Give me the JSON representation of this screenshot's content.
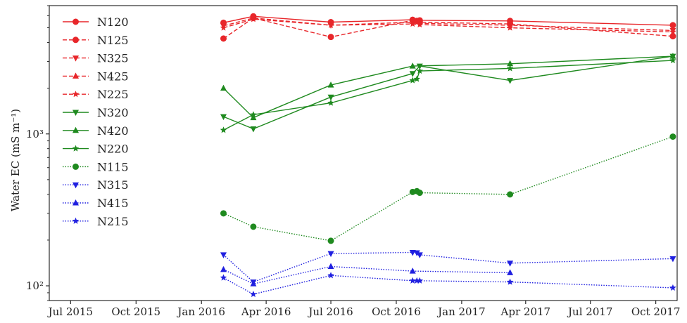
{
  "chart_data": {
    "type": "line",
    "title": "",
    "xlabel": "",
    "ylabel": "Water EC (mS m⁻¹)",
    "yscale": "log",
    "xlim": [
      "2015-06-01",
      "2017-10-31"
    ],
    "ylim": [
      80,
      7000
    ],
    "x_ticks": [
      "2015-07-01",
      "2015-10-01",
      "2016-01-01",
      "2016-04-01",
      "2016-07-01",
      "2016-10-01",
      "2017-01-01",
      "2017-04-01",
      "2017-07-01",
      "2017-10-01"
    ],
    "x_tick_labels": [
      "Jul 2015",
      "Oct 2015",
      "Jan 2016",
      "Apr 2016",
      "Jul 2016",
      "Oct 2016",
      "Jan 2017",
      "Apr 2017",
      "Jul 2017",
      "Oct 2017"
    ],
    "y_ticks": [
      100,
      1000
    ],
    "y_tick_labels": [
      "10²",
      "10³"
    ],
    "grid": false,
    "legend_position": "upper-left",
    "series": [
      {
        "name": "N120",
        "color": "#e8262a",
        "dash": "solid",
        "marker": "circle",
        "x": [
          "2016-02-01",
          "2016-03-14",
          "2016-07-01",
          "2016-10-24",
          "2016-11-03",
          "2017-03-10",
          "2017-10-25"
        ],
        "y": [
          5400,
          5950,
          5450,
          5650,
          5600,
          5550,
          5200
        ]
      },
      {
        "name": "N125",
        "color": "#e8262a",
        "dash": "dashed",
        "marker": "circle",
        "x": [
          "2016-02-01",
          "2016-03-14",
          "2016-07-01",
          "2016-10-24",
          "2016-10-30",
          "2016-11-03",
          "2017-03-10",
          "2017-10-25"
        ],
        "y": [
          4250,
          5800,
          4350,
          5600,
          5550,
          5450,
          5300,
          4400
        ]
      },
      {
        "name": "N325",
        "color": "#e8262a",
        "dash": "dashed",
        "marker": "tri-down",
        "x": [
          "2016-02-01",
          "2016-03-14",
          "2016-07-01",
          "2016-10-24",
          "2016-11-03",
          "2017-03-10",
          "2017-10-25"
        ],
        "y": [
          5150,
          5800,
          5200,
          5450,
          5350,
          5200,
          4800
        ]
      },
      {
        "name": "N425",
        "color": "#e8262a",
        "dash": "dashed",
        "marker": "tri-up",
        "x": [],
        "y": []
      },
      {
        "name": "N225",
        "color": "#e8262a",
        "dash": "dashed",
        "marker": "star",
        "x": [
          "2016-02-01",
          "2016-03-14",
          "2016-07-01",
          "2016-10-24",
          "2016-11-03",
          "2017-03-10",
          "2017-10-25"
        ],
        "y": [
          5000,
          5700,
          5200,
          5300,
          5250,
          5000,
          4700
        ]
      },
      {
        "name": "N320",
        "color": "#1f8a1f",
        "dash": "solid",
        "marker": "tri-down",
        "x": [
          "2016-02-01",
          "2016-03-14",
          "2016-07-01",
          "2016-10-24",
          "2016-11-03",
          "2017-03-10",
          "2017-10-25"
        ],
        "y": [
          1300,
          1080,
          1750,
          2500,
          2800,
          2250,
          3250
        ]
      },
      {
        "name": "N420",
        "color": "#1f8a1f",
        "dash": "solid",
        "marker": "tri-up",
        "x": [
          "2016-02-01",
          "2016-03-14",
          "2016-07-01",
          "2016-10-24",
          "2017-03-10",
          "2017-10-25"
        ],
        "y": [
          2000,
          1280,
          2100,
          2800,
          2900,
          3250
        ]
      },
      {
        "name": "N220",
        "color": "#1f8a1f",
        "dash": "solid",
        "marker": "star",
        "x": [
          "2016-02-01",
          "2016-03-14",
          "2016-07-01",
          "2016-10-24",
          "2016-10-30",
          "2016-11-03",
          "2017-03-10",
          "2017-10-25"
        ],
        "y": [
          1060,
          1340,
          1600,
          2250,
          2300,
          2600,
          2700,
          3050
        ]
      },
      {
        "name": "N115",
        "color": "#1f8a1f",
        "dash": "dotted",
        "marker": "circle",
        "x": [
          "2016-02-01",
          "2016-03-14",
          "2016-07-01",
          "2016-10-24",
          "2016-10-30",
          "2016-11-03",
          "2017-03-10",
          "2017-10-25"
        ],
        "y": [
          300,
          245,
          198,
          415,
          420,
          410,
          400,
          960
        ]
      },
      {
        "name": "N315",
        "color": "#2020e0",
        "dash": "dotted",
        "marker": "tri-down",
        "x": [
          "2016-02-01",
          "2016-03-14",
          "2016-07-01",
          "2016-10-24",
          "2016-10-30",
          "2016-11-03",
          "2017-03-10",
          "2017-10-25"
        ],
        "y": [
          160,
          106,
          163,
          166,
          165,
          160,
          141,
          151
        ]
      },
      {
        "name": "N415",
        "color": "#2020e0",
        "dash": "dotted",
        "marker": "tri-up",
        "x": [
          "2016-02-01",
          "2016-03-14",
          "2016-07-01",
          "2016-10-24",
          "2017-03-10"
        ],
        "y": [
          128,
          103,
          134,
          125,
          122
        ]
      },
      {
        "name": "N215",
        "color": "#2020e0",
        "dash": "dotted",
        "marker": "star",
        "x": [
          "2016-02-01",
          "2016-03-14",
          "2016-07-01",
          "2016-10-24",
          "2016-10-30",
          "2016-11-03",
          "2017-03-10",
          "2017-10-25"
        ],
        "y": [
          113,
          88,
          117,
          108,
          108,
          108,
          106,
          97
        ]
      }
    ]
  }
}
